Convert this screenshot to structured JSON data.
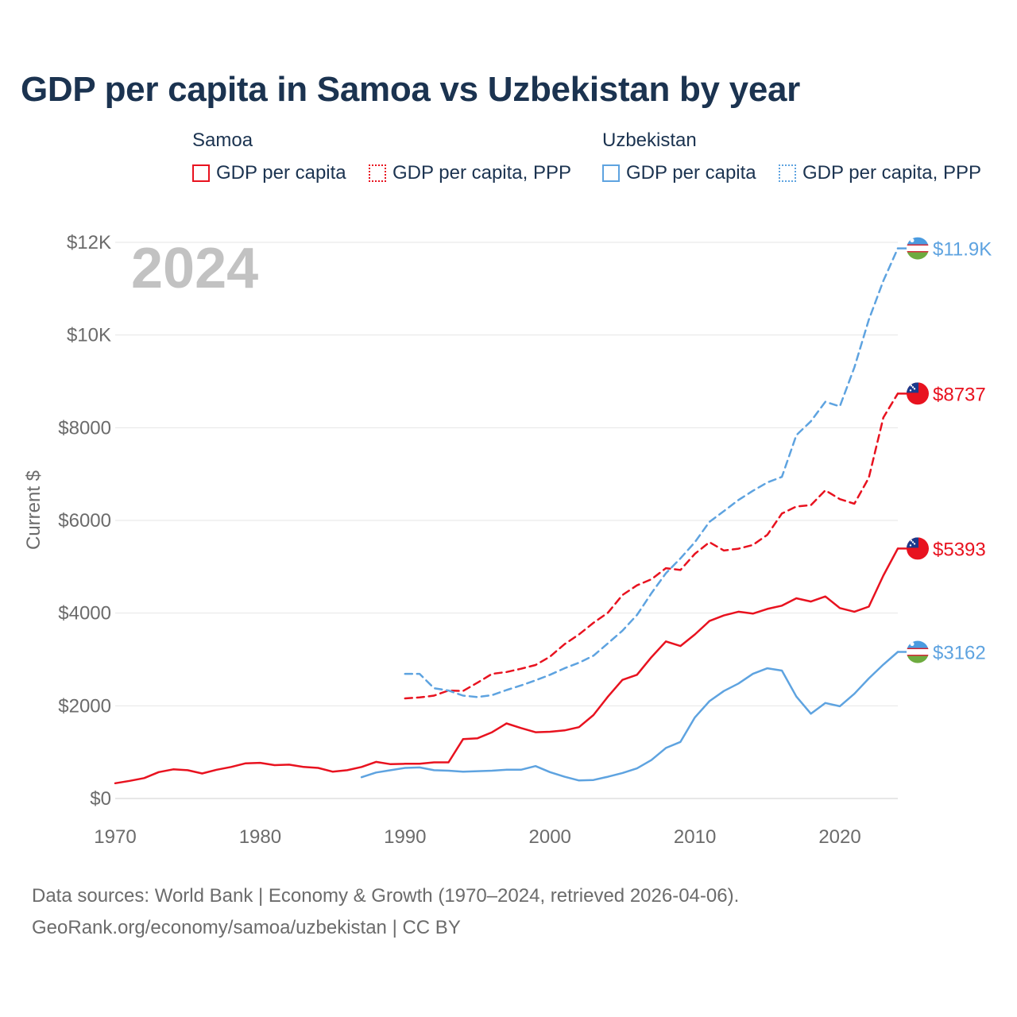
{
  "chart_data": {
    "type": "line",
    "title": "GDP per capita in Samoa vs Uzbekistan by year",
    "year_label": "2024",
    "ylabel": "Current $",
    "xlim": [
      1970,
      2024
    ],
    "ylim": [
      0,
      12000
    ],
    "x_ticks": [
      1970,
      1980,
      1990,
      2000,
      2010,
      2020
    ],
    "x_tick_labels": [
      "1970",
      "1980",
      "1990",
      "2000",
      "2010",
      "2020"
    ],
    "y_ticks": [
      0,
      2000,
      4000,
      6000,
      8000,
      10000,
      12000
    ],
    "y_tick_labels": [
      "$0",
      "$2000",
      "$4000",
      "$6000",
      "$8000",
      "$10K",
      "$12K"
    ],
    "legend": {
      "groups": [
        {
          "country": "Samoa",
          "items": [
            "GDP per capita",
            "GDP per capita, PPP"
          ]
        },
        {
          "country": "Uzbekistan",
          "items": [
            "GDP per capita",
            "GDP per capita, PPP"
          ]
        }
      ]
    },
    "series": [
      {
        "name": "Samoa GDP per capita",
        "country": "Samoa",
        "style": "solid",
        "color": "#e8121f",
        "end_label": "$5393",
        "x": [
          1970,
          1971,
          1972,
          1973,
          1974,
          1975,
          1976,
          1977,
          1978,
          1979,
          1980,
          1981,
          1982,
          1983,
          1984,
          1985,
          1986,
          1987,
          1988,
          1989,
          1990,
          1991,
          1992,
          1993,
          1994,
          1995,
          1996,
          1997,
          1998,
          1999,
          2000,
          2001,
          2002,
          2003,
          2004,
          2005,
          2006,
          2007,
          2008,
          2009,
          2010,
          2011,
          2012,
          2013,
          2014,
          2015,
          2016,
          2017,
          2018,
          2019,
          2020,
          2021,
          2022,
          2023,
          2024
        ],
        "values": [
          330,
          380,
          440,
          570,
          630,
          610,
          540,
          620,
          680,
          760,
          770,
          720,
          730,
          680,
          660,
          580,
          610,
          680,
          790,
          740,
          750,
          750,
          780,
          780,
          1280,
          1300,
          1430,
          1620,
          1520,
          1430,
          1440,
          1470,
          1540,
          1800,
          2200,
          2560,
          2670,
          3050,
          3390,
          3290,
          3540,
          3830,
          3950,
          4030,
          3990,
          4090,
          4160,
          4320,
          4250,
          4360,
          4110,
          4030,
          4140,
          4810,
          5393
        ]
      },
      {
        "name": "Samoa GDP per capita, PPP",
        "country": "Samoa",
        "style": "dashed",
        "color": "#e8121f",
        "end_label": "$8737",
        "x": [
          1990,
          1991,
          1992,
          1993,
          1994,
          1995,
          1996,
          1997,
          1998,
          1999,
          2000,
          2001,
          2002,
          2003,
          2004,
          2005,
          2006,
          2007,
          2008,
          2009,
          2010,
          2011,
          2012,
          2013,
          2014,
          2015,
          2016,
          2017,
          2018,
          2019,
          2020,
          2021,
          2022,
          2023,
          2024
        ],
        "values": [
          2160,
          2180,
          2220,
          2330,
          2320,
          2500,
          2690,
          2730,
          2800,
          2880,
          3060,
          3330,
          3540,
          3790,
          4010,
          4390,
          4600,
          4730,
          4970,
          4930,
          5280,
          5530,
          5350,
          5390,
          5470,
          5690,
          6150,
          6300,
          6330,
          6650,
          6460,
          6360,
          6920,
          8220,
          8737
        ]
      },
      {
        "name": "Uzbekistan GDP per capita",
        "country": "Uzbekistan",
        "style": "solid",
        "color": "#5ea3e0",
        "end_label": "$3162",
        "x": [
          1987,
          1988,
          1989,
          1990,
          1991,
          1992,
          1993,
          1994,
          1995,
          1996,
          1997,
          1998,
          1999,
          2000,
          2001,
          2002,
          2003,
          2004,
          2005,
          2006,
          2007,
          2008,
          2009,
          2010,
          2011,
          2012,
          2013,
          2014,
          2015,
          2016,
          2017,
          2018,
          2019,
          2020,
          2021,
          2022,
          2023,
          2024
        ],
        "values": [
          460,
          560,
          610,
          660,
          670,
          610,
          600,
          580,
          590,
          600,
          620,
          620,
          700,
          570,
          470,
          390,
          400,
          470,
          550,
          650,
          830,
          1090,
          1220,
          1750,
          2100,
          2320,
          2480,
          2690,
          2810,
          2760,
          2200,
          1830,
          2060,
          1990,
          2260,
          2590,
          2890,
          3162
        ]
      },
      {
        "name": "Uzbekistan GDP per capita, PPP",
        "country": "Uzbekistan",
        "style": "dashed",
        "color": "#5ea3e0",
        "end_label": "$11.9K",
        "x": [
          1990,
          1991,
          1992,
          1993,
          1994,
          1995,
          1996,
          1997,
          1998,
          1999,
          2000,
          2001,
          2002,
          2003,
          2004,
          2005,
          2006,
          2007,
          2008,
          2009,
          2010,
          2011,
          2012,
          2013,
          2014,
          2015,
          2016,
          2017,
          2018,
          2019,
          2020,
          2021,
          2022,
          2023,
          2024
        ],
        "values": [
          2690,
          2690,
          2380,
          2330,
          2220,
          2190,
          2230,
          2340,
          2440,
          2550,
          2670,
          2810,
          2930,
          3080,
          3350,
          3620,
          3960,
          4430,
          4860,
          5180,
          5530,
          5970,
          6200,
          6440,
          6640,
          6820,
          6940,
          7840,
          8140,
          8560,
          8460,
          9300,
          10330,
          11170,
          11870
        ]
      }
    ]
  },
  "source": {
    "line1": "Data sources: World Bank | Economy & Growth (1970–2024, retrieved 2026-04-06).",
    "line2": "GeoRank.org/economy/samoa/uzbekistan | CC BY"
  }
}
